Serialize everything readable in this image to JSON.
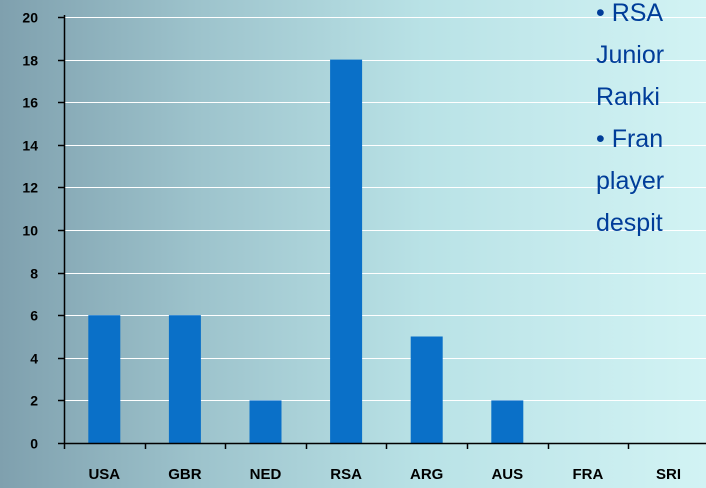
{
  "chart_data": {
    "type": "bar",
    "categories": [
      "USA",
      "GBR",
      "NED",
      "RSA",
      "ARG",
      "AUS",
      "FRA",
      "SRI"
    ],
    "values": [
      6,
      6,
      2,
      18,
      5,
      2,
      0,
      0
    ],
    "title": "",
    "xlabel": "",
    "ylabel": "",
    "ylim": [
      0,
      20
    ],
    "y_ticks": [
      0,
      2,
      4,
      6,
      8,
      10,
      12,
      14,
      16,
      18,
      20
    ],
    "grid": true,
    "legend": "none",
    "colors": {
      "bar": "#0a70c8",
      "grid": "#ffffff",
      "axis": "#000000",
      "tick_label": "#000000"
    }
  },
  "side_note": {
    "lines": [
      "• RSA",
      "Junior",
      "Ranki",
      "• Fran",
      "player",
      "despit"
    ],
    "color": "#003d99"
  }
}
